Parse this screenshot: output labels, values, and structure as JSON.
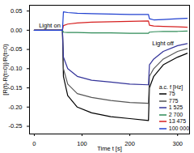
{
  "chart_data": {
    "type": "line",
    "xlabel": "Time t [s]",
    "ylabel": "[R(t)-R(t=0)]/R(t=0)",
    "xlim": [
      -10,
      325
    ],
    "xticks": [
      0,
      100,
      200,
      300
    ],
    "ylim": [
      -0.27,
      0.065
    ],
    "yticks": [
      {
        "value": 0.05,
        "label": "0.05"
      },
      {
        "value": 0,
        "label": "0.00"
      },
      {
        "value": -0.05,
        "label": "-0.05"
      },
      {
        "value": -0.1,
        "label": "-0.10"
      },
      {
        "value": -0.15,
        "label": "-0.15"
      },
      {
        "value": -0.2,
        "label": "-0.20"
      },
      {
        "value": -0.25,
        "label": "-0.25"
      }
    ],
    "legend": "lower right",
    "legend_title": "a.c. f [Hz]",
    "annotations": [
      {
        "text": "Light on",
        "x": 60
      },
      {
        "text": "Light off",
        "x": 240
      }
    ],
    "x": [
      0,
      30,
      59,
      61,
      70,
      90,
      120,
      160,
      200,
      239,
      241,
      250,
      270,
      300,
      320
    ],
    "series": [
      {
        "name": "75",
        "color": "#000000",
        "values": [
          0,
          0,
          0,
          -0.12,
          -0.17,
          -0.2,
          -0.215,
          -0.225,
          -0.23,
          -0.235,
          -0.15,
          -0.12,
          -0.09,
          -0.07,
          -0.06
        ]
      },
      {
        "name": "775",
        "color": "#555555",
        "values": [
          0,
          0,
          0,
          -0.1,
          -0.14,
          -0.165,
          -0.175,
          -0.183,
          -0.188,
          -0.19,
          -0.12,
          -0.1,
          -0.075,
          -0.055,
          -0.048
        ]
      },
      {
        "name": "1 525",
        "color": "#333399",
        "values": [
          0,
          0,
          0,
          -0.07,
          -0.1,
          -0.12,
          -0.13,
          -0.135,
          -0.14,
          -0.142,
          -0.09,
          -0.075,
          -0.055,
          -0.04,
          -0.035
        ]
      },
      {
        "name": "2 700",
        "color": "#2e8b57",
        "values": [
          0,
          0,
          0,
          -0.005,
          -0.006,
          -0.006,
          -0.007,
          -0.007,
          -0.008,
          -0.008,
          -0.005,
          -0.004,
          -0.003,
          -0.003,
          -0.002
        ]
      },
      {
        "name": "13 475",
        "color": "#d62020",
        "values": [
          0,
          0,
          0,
          0.012,
          0.016,
          0.019,
          0.021,
          0.022,
          0.023,
          0.024,
          0.013,
          0.011,
          0.01,
          0.009,
          0.008
        ]
      },
      {
        "name": "100 000",
        "color": "#2040d0",
        "values": [
          0,
          0,
          0,
          0.048,
          0.046,
          0.044,
          0.043,
          0.042,
          0.041,
          0.041,
          0.03,
          0.027,
          0.028,
          0.03,
          0.031
        ]
      }
    ]
  }
}
